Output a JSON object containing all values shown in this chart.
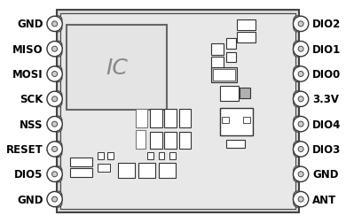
{
  "left_pins": [
    "GND",
    "MISO",
    "MOSI",
    "SCK",
    "NSS",
    "RESET",
    "DIO5",
    "GND"
  ],
  "right_pins": [
    "DIO2",
    "DIO1",
    "DIO0",
    "3.3V",
    "DIO4",
    "DIO3",
    "GND",
    "ANT"
  ],
  "bg_color": "#ffffff",
  "board_fill": "#d8d8d8",
  "board_edge": "#444444",
  "comp_fill": "#ffffff",
  "comp_edge": "#333333",
  "ic_fill": "#e4e4e4",
  "ic_edge": "#666666",
  "text_color": "#000000",
  "pin_fill": "#ffffff",
  "pin_edge": "#333333",
  "font_size": 8.5
}
